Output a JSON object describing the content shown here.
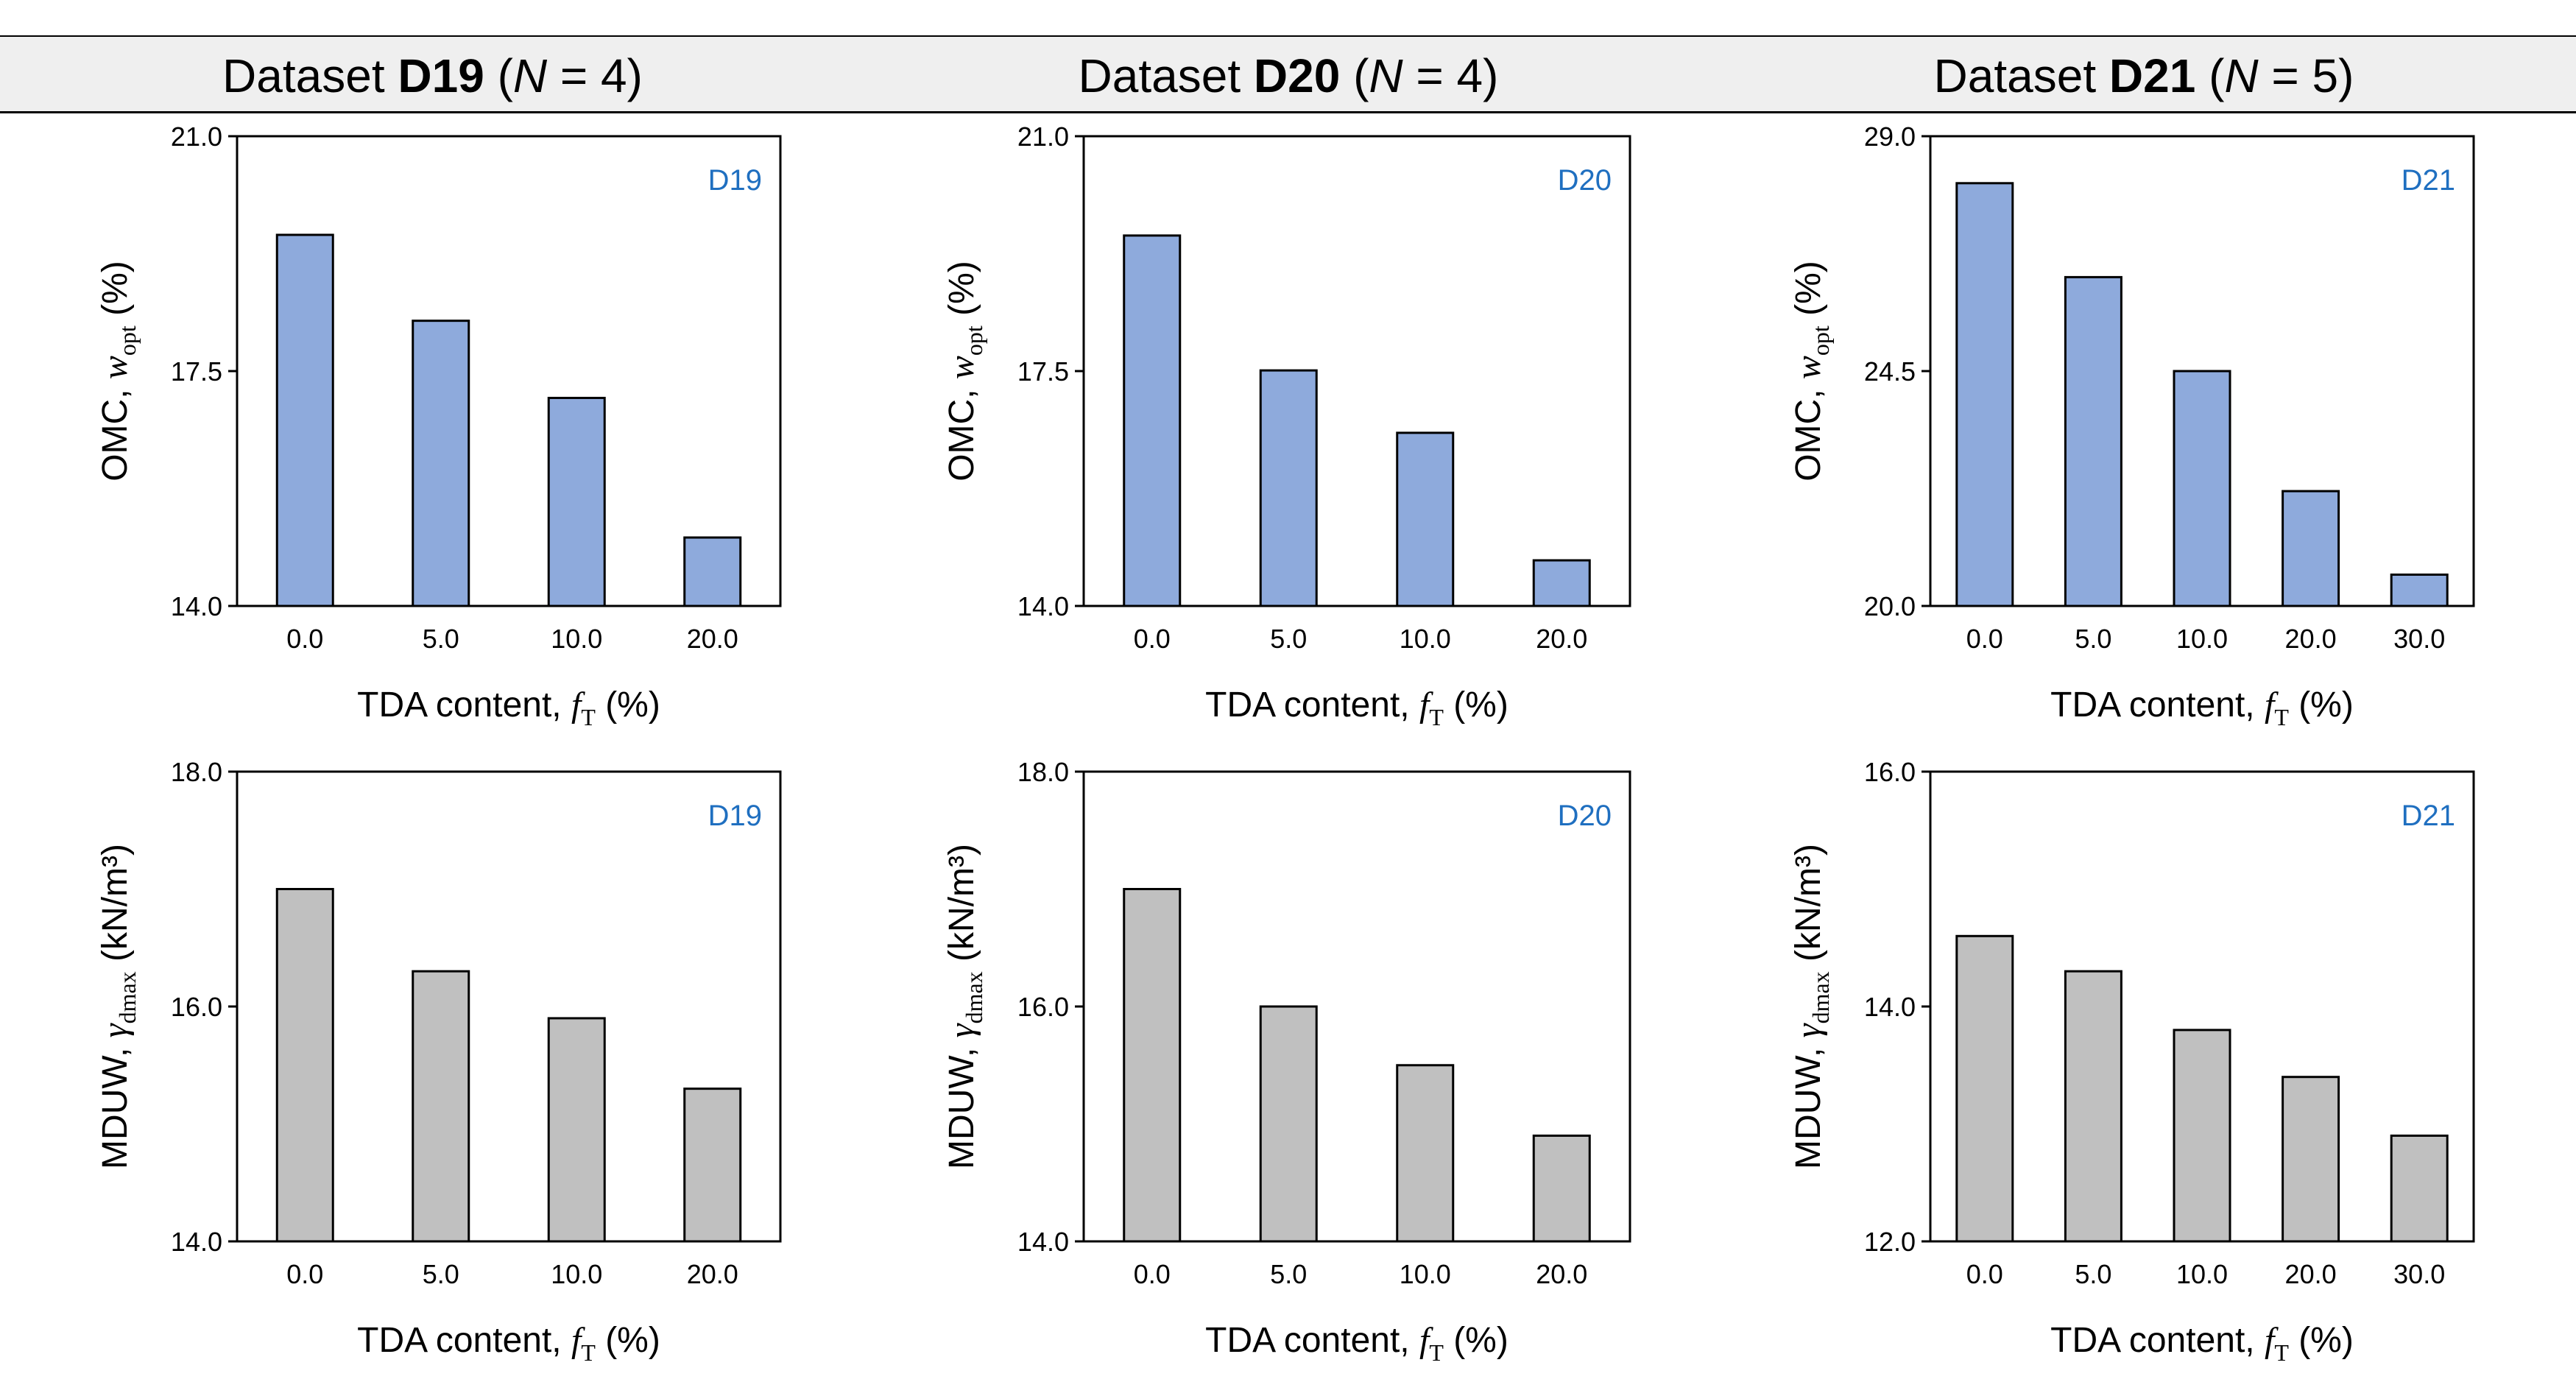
{
  "headers": [
    {
      "prefix": "Dataset",
      "name": "D19",
      "n_label": "N",
      "n_value": "= 4"
    },
    {
      "prefix": "Dataset",
      "name": "D20",
      "n_label": "N",
      "n_value": "= 4"
    },
    {
      "prefix": "Dataset",
      "name": "D21",
      "n_label": "N",
      "n_value": "= 5"
    }
  ],
  "colors": {
    "omc_bar": "#8eaadc",
    "mduw_bar": "#c0c0c0",
    "tag": "#1f6fc0",
    "axis": "#000000"
  },
  "axis_text": {
    "xlabel": "TDA content,",
    "xsym": "f",
    "xsub": "T",
    "xunit": "(%)",
    "omc_label": "OMC,",
    "omc_sym": "w",
    "omc_sub": "opt",
    "omc_unit": "(%)",
    "mduw_label": "MDUW,",
    "mduw_sym": "γ",
    "mduw_sub": "dmax",
    "mduw_unit": "(kN/m³)"
  },
  "chart_data": [
    {
      "type": "bar",
      "id": "D19-omc",
      "tag": "D19",
      "quantity": "omc",
      "categories": [
        "0.0",
        "5.0",
        "10.0",
        "20.0"
      ],
      "values": [
        19.53,
        18.25,
        17.1,
        15.02
      ],
      "ylim": [
        14.0,
        21.0
      ],
      "yticks": [
        "14.0",
        "17.5",
        "21.0"
      ]
    },
    {
      "type": "bar",
      "id": "D20-omc",
      "tag": "D20",
      "quantity": "omc",
      "categories": [
        "0.0",
        "5.0",
        "10.0",
        "20.0"
      ],
      "values": [
        19.52,
        17.51,
        16.58,
        14.68
      ],
      "ylim": [
        14.0,
        21.0
      ],
      "yticks": [
        "14.0",
        "17.5",
        "21.0"
      ]
    },
    {
      "type": "bar",
      "id": "D21-omc",
      "tag": "D21",
      "quantity": "omc",
      "categories": [
        "0.0",
        "5.0",
        "10.0",
        "20.0",
        "30.0"
      ],
      "values": [
        28.1,
        26.3,
        24.5,
        22.2,
        20.6
      ],
      "ylim": [
        20.0,
        29.0
      ],
      "yticks": [
        "20.0",
        "24.5",
        "29.0"
      ]
    },
    {
      "type": "bar",
      "id": "D19-mduw",
      "tag": "D19",
      "quantity": "mduw",
      "categories": [
        "0.0",
        "5.0",
        "10.0",
        "20.0"
      ],
      "values": [
        17.0,
        16.3,
        15.9,
        15.3
      ],
      "ylim": [
        14.0,
        18.0
      ],
      "yticks": [
        "14.0",
        "16.0",
        "18.0"
      ]
    },
    {
      "type": "bar",
      "id": "D20-mduw",
      "tag": "D20",
      "quantity": "mduw",
      "categories": [
        "0.0",
        "5.0",
        "10.0",
        "20.0"
      ],
      "values": [
        17.0,
        16.0,
        15.5,
        14.9
      ],
      "ylim": [
        14.0,
        18.0
      ],
      "yticks": [
        "14.0",
        "16.0",
        "18.0"
      ]
    },
    {
      "type": "bar",
      "id": "D21-mduw",
      "tag": "D21",
      "quantity": "mduw",
      "categories": [
        "0.0",
        "5.0",
        "10.0",
        "20.0",
        "30.0"
      ],
      "values": [
        14.6,
        14.3,
        13.8,
        13.4,
        12.9
      ],
      "ylim": [
        12.0,
        16.0
      ],
      "yticks": [
        "12.0",
        "14.0",
        "16.0"
      ]
    }
  ]
}
